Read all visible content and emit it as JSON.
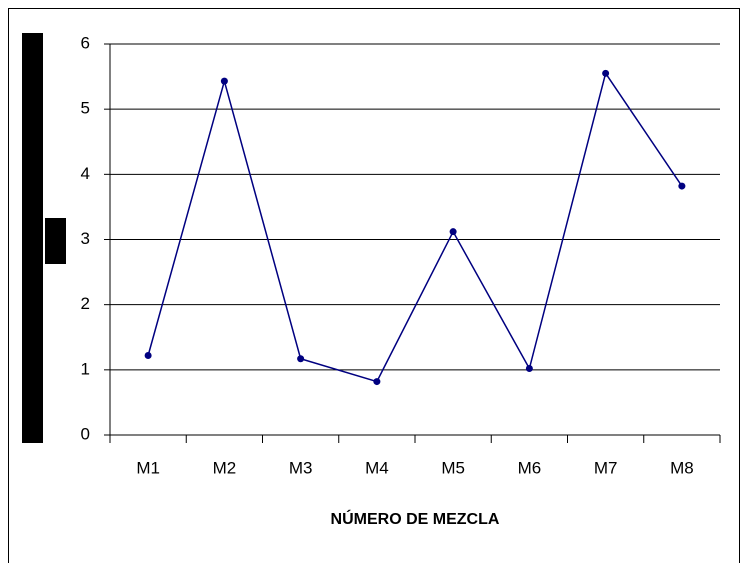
{
  "chart_data": {
    "type": "line",
    "categories": [
      "M1",
      "M2",
      "M3",
      "M4",
      "M5",
      "M6",
      "M7",
      "M8"
    ],
    "series": [
      {
        "color": "#000080",
        "values": [
          1.22,
          5.43,
          1.17,
          0.82,
          3.12,
          1.02,
          5.55,
          3.82
        ]
      }
    ],
    "xlabel": "NÚMERO DE MEZCLA",
    "ylim": [
      0,
      6
    ],
    "yticks": [
      0,
      1,
      2,
      3,
      4,
      5,
      6
    ],
    "grid": true
  }
}
